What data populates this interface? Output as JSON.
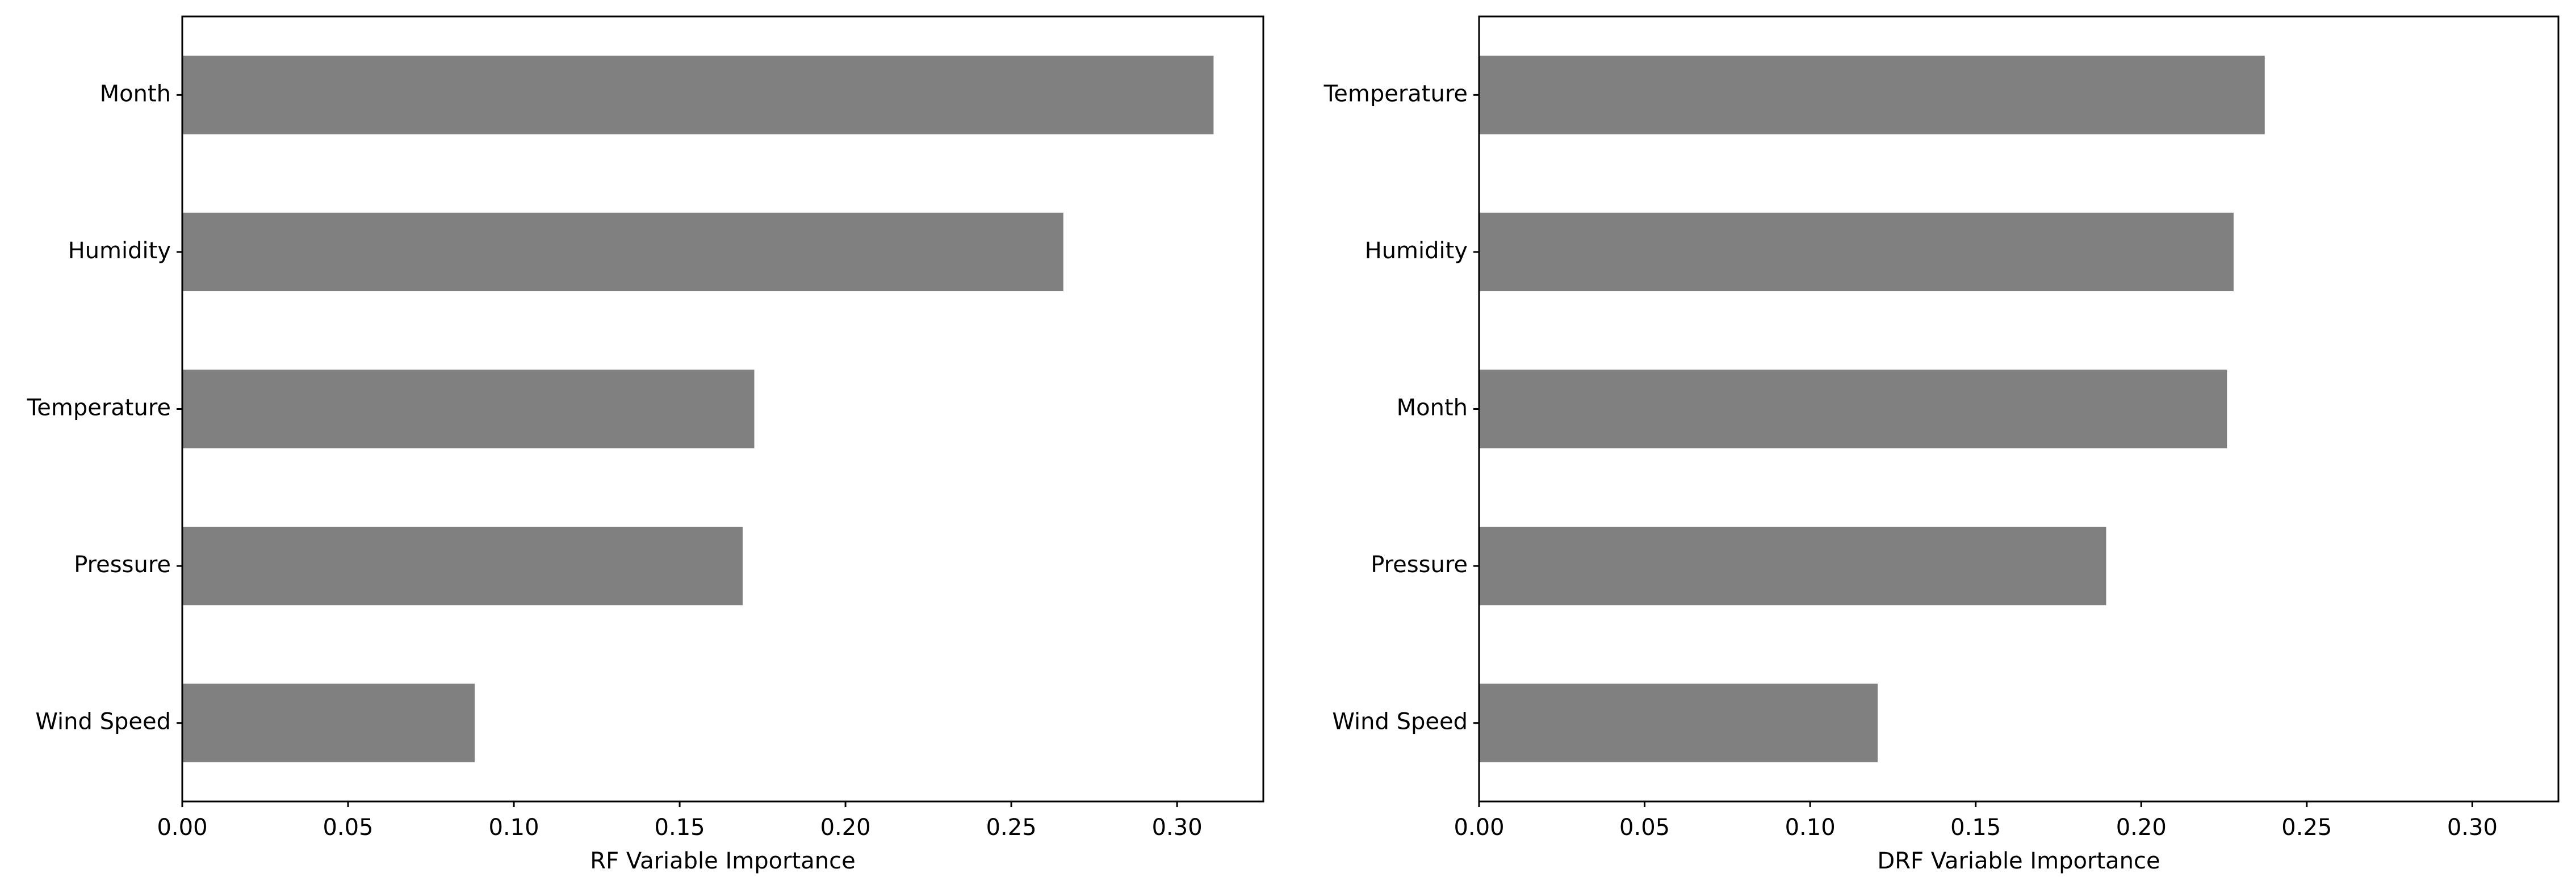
{
  "chart_data": [
    {
      "type": "barh",
      "xlabel": "RF Variable Importance",
      "categories": [
        "Month",
        "Humidity",
        "Temperature",
        "Pressure",
        "Wind Speed"
      ],
      "values": [
        0.311,
        0.2657,
        0.1725,
        0.169,
        0.0882
      ],
      "color": "#808080",
      "xlim": [
        0,
        0.326
      ],
      "xticks": [
        {
          "value": 0,
          "label": "0.00"
        },
        {
          "value": 0.05,
          "label": "0.05"
        },
        {
          "value": 0.1,
          "label": "0.10"
        },
        {
          "value": 0.15,
          "label": "0.15"
        },
        {
          "value": 0.2,
          "label": "0.20"
        },
        {
          "value": 0.25,
          "label": "0.25"
        },
        {
          "value": 0.3,
          "label": "0.30"
        }
      ]
    },
    {
      "type": "barh",
      "xlabel": "DRF Variable Importance",
      "categories": [
        "Temperature",
        "Humidity",
        "Month",
        "Pressure",
        "Wind Speed"
      ],
      "values": [
        0.2373,
        0.2279,
        0.2259,
        0.1894,
        0.1204
      ],
      "color": "#808080",
      "xlim": [
        0,
        0.326
      ],
      "xticks": [
        {
          "value": 0,
          "label": "0.00"
        },
        {
          "value": 0.05,
          "label": "0.05"
        },
        {
          "value": 0.1,
          "label": "0.10"
        },
        {
          "value": 0.15,
          "label": "0.15"
        },
        {
          "value": 0.2,
          "label": "0.20"
        },
        {
          "value": 0.25,
          "label": "0.25"
        },
        {
          "value": 0.3,
          "label": "0.30"
        }
      ]
    }
  ]
}
